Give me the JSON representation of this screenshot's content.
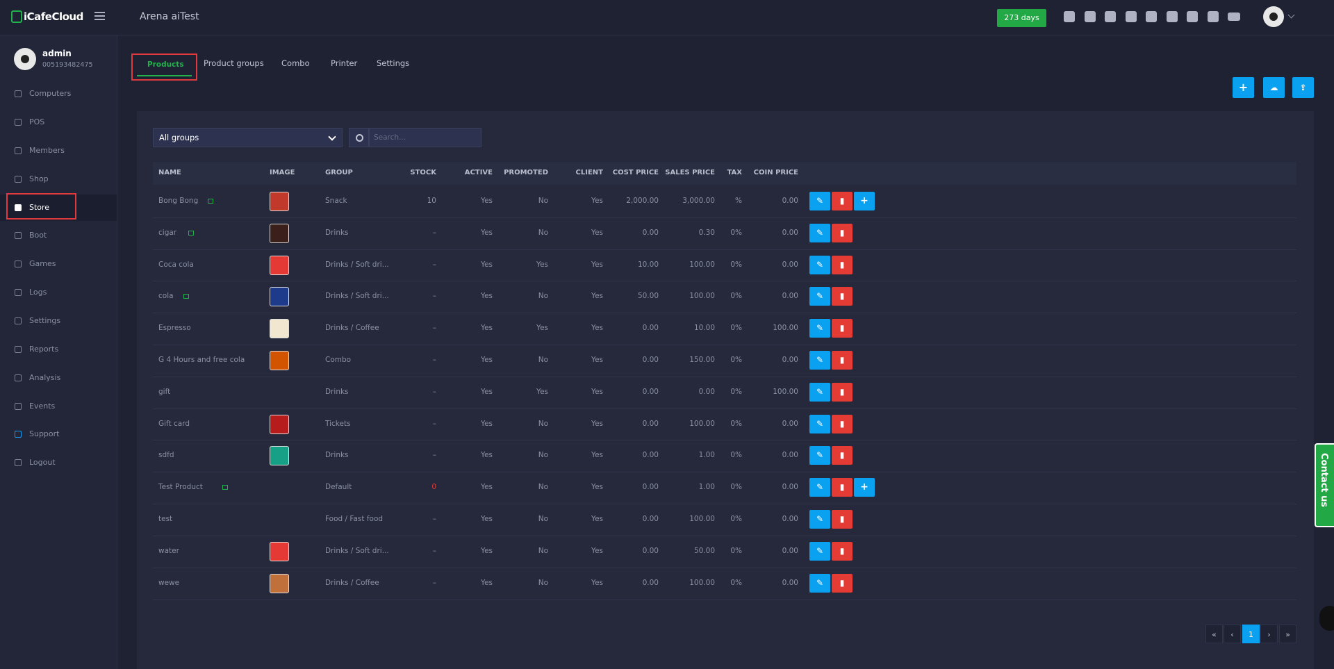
{
  "header": {
    "logo": "iCafeCloud",
    "title": "Arena aiTest",
    "days": "273 days"
  },
  "sidebar": {
    "user": {
      "name": "admin",
      "id": "005193482475"
    },
    "menu": [
      "Computers",
      "POS",
      "Members",
      "Shop",
      "Store",
      "Boot",
      "Games",
      "Logs",
      "Settings",
      "Reports",
      "Analysis",
      "Events",
      "Support",
      "Logout"
    ]
  },
  "tabs": [
    "Products",
    "Product groups",
    "Combo",
    "Printer",
    "Settings"
  ],
  "filter": {
    "group": "All groups",
    "search_placeholder": "Search..."
  },
  "table": {
    "columns": [
      "NAME",
      "IMAGE",
      "GROUP",
      "STOCK",
      "ACTIVE",
      "PROMOTED",
      "CLIENT",
      "COST PRICE",
      "SALES PRICE",
      "TAX",
      "COIN PRICE"
    ],
    "rows": [
      [
        "Bong Bong",
        "Snack",
        "10",
        "Yes",
        "No",
        "Yes",
        "2,000.00",
        "3,000.00",
        "%",
        "0.00"
      ],
      [
        "cigar",
        "Drinks",
        "–",
        "Yes",
        "No",
        "Yes",
        "0.00",
        "0.30",
        "0%",
        "0.00"
      ],
      [
        "Coca cola",
        "Drinks / Soft dri...",
        "–",
        "Yes",
        "Yes",
        "Yes",
        "10.00",
        "100.00",
        "0%",
        "0.00"
      ],
      [
        "cola",
        "Drinks / Soft dri...",
        "–",
        "Yes",
        "No",
        "Yes",
        "50.00",
        "100.00",
        "0%",
        "0.00"
      ],
      [
        "Espresso",
        "Drinks / Coffee",
        "–",
        "Yes",
        "Yes",
        "Yes",
        "0.00",
        "10.00",
        "0%",
        "100.00"
      ],
      [
        "G 4 Hours and free cola",
        "Combo",
        "–",
        "Yes",
        "No",
        "Yes",
        "0.00",
        "150.00",
        "0%",
        "0.00"
      ],
      [
        "gift",
        "Drinks",
        "–",
        "Yes",
        "Yes",
        "Yes",
        "0.00",
        "0.00",
        "0%",
        "100.00"
      ],
      [
        "Gift card",
        "Tickets",
        "–",
        "Yes",
        "No",
        "Yes",
        "0.00",
        "100.00",
        "0%",
        "0.00"
      ],
      [
        "sdfd",
        "Drinks",
        "–",
        "Yes",
        "No",
        "Yes",
        "0.00",
        "1.00",
        "0%",
        "0.00"
      ],
      [
        "Test Product",
        "Default",
        "0",
        "Yes",
        "No",
        "Yes",
        "0.00",
        "1.00",
        "0%",
        "0.00"
      ],
      [
        "test",
        "Food / Fast food",
        "–",
        "Yes",
        "No",
        "Yes",
        "0.00",
        "100.00",
        "0%",
        "0.00"
      ],
      [
        "water",
        "Drinks / Soft dri...",
        "–",
        "Yes",
        "No",
        "Yes",
        "0.00",
        "50.00",
        "0%",
        "0.00"
      ],
      [
        "wewe",
        "Drinks / Coffee",
        "–",
        "Yes",
        "No",
        "Yes",
        "0.00",
        "100.00",
        "0%",
        "0.00"
      ]
    ]
  },
  "pagination": [
    "«",
    "‹",
    "1",
    "›",
    "»"
  ],
  "contact": "Contact us"
}
